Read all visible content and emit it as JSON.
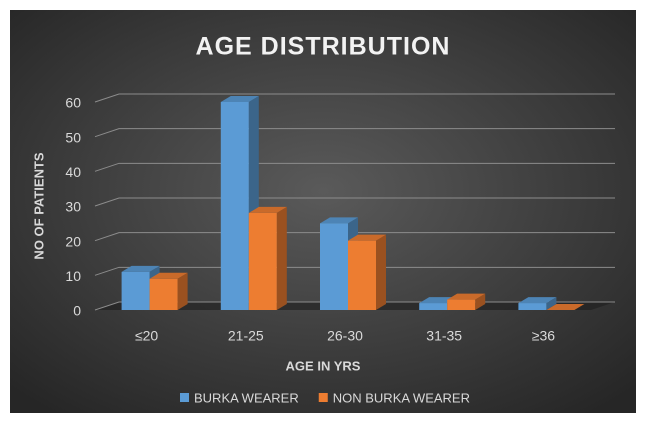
{
  "chart_data": {
    "type": "bar3d",
    "title": "AGE DISTRIBUTION",
    "x_label": "AGE IN YRS",
    "y_label": "NO OF PATIENTS",
    "categories": [
      "≤20",
      "21-25",
      "26-30",
      "31-35",
      "≥36"
    ],
    "series": [
      {
        "name": "BURKA WEARER",
        "color": "#5b9bd5",
        "values": [
          11,
          60,
          25,
          2,
          2
        ]
      },
      {
        "name": "NON BURKA WEARER",
        "color": "#ed7d31",
        "values": [
          9,
          28,
          20,
          3,
          0
        ]
      }
    ],
    "ylim": [
      0,
      60
    ],
    "yticks": [
      0,
      10,
      20,
      30,
      40,
      50,
      60
    ],
    "grid": true,
    "legend": "bottom"
  }
}
